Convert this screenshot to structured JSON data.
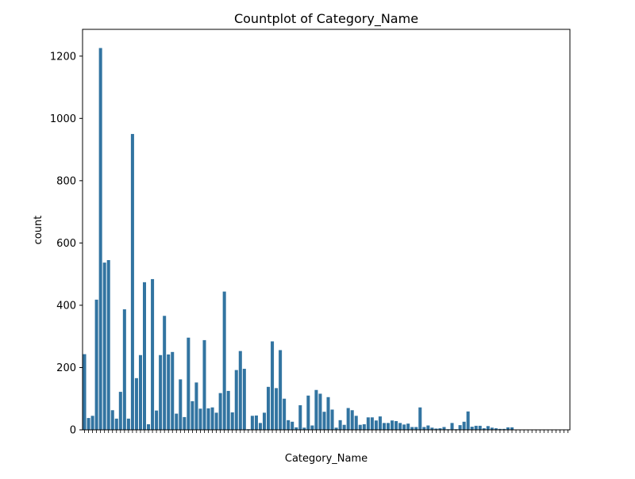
{
  "chart_data": {
    "type": "bar",
    "title": "Countplot of Category_Name",
    "xlabel": "Category_Name",
    "ylabel": "count",
    "ylim": [
      0,
      1286
    ],
    "yticks": [
      0,
      200,
      400,
      600,
      800,
      1000,
      1200
    ],
    "grid": false,
    "bar_color": "#3274a1",
    "series": [
      {
        "values": [
          243,
          38,
          45,
          418,
          1226,
          537,
          545,
          63,
          36,
          122,
          387,
          36,
          950,
          166,
          240,
          474,
          18,
          484,
          62,
          240,
          366,
          242,
          250,
          52,
          162,
          41,
          296,
          92,
          152,
          68,
          288,
          69,
          72,
          55,
          118,
          444,
          125,
          56,
          192,
          253,
          196,
          2,
          45,
          46,
          22,
          55,
          138,
          284,
          134,
          256,
          100,
          31,
          26,
          8,
          79,
          7,
          110,
          14,
          128,
          116,
          58,
          105,
          65,
          7,
          31,
          16,
          70,
          63,
          45,
          16,
          18,
          40,
          40,
          30,
          43,
          22,
          22,
          30,
          28,
          22,
          17,
          20,
          9,
          9,
          72,
          9,
          14,
          7,
          4,
          5,
          9,
          2,
          22,
          2,
          15,
          26,
          59,
          10,
          13,
          13,
          5,
          12,
          7,
          5,
          3,
          3,
          8,
          8,
          1,
          1,
          1,
          1,
          1,
          1,
          1,
          1,
          1,
          1,
          1,
          1,
          1,
          1
        ]
      }
    ]
  }
}
